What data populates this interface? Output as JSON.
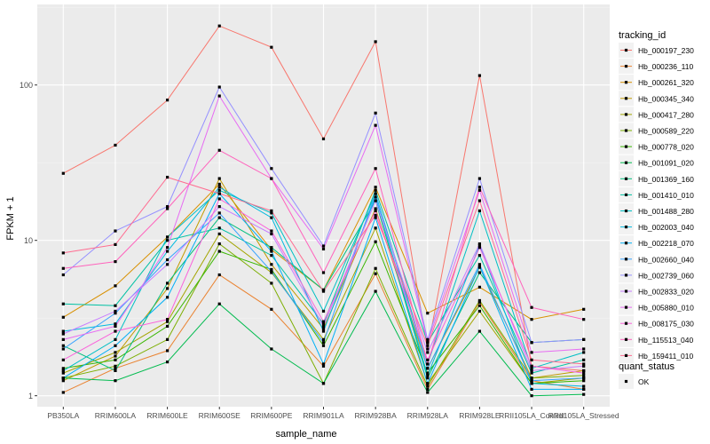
{
  "chart_data": {
    "type": "line",
    "title": "",
    "xlabel": "sample_name",
    "ylabel": "FPKM + 1",
    "y_scale": "log10",
    "ylim": [
      0.85,
      330
    ],
    "y_ticks": [
      {
        "value": 1,
        "label": "1"
      },
      {
        "value": 10,
        "label": "10"
      },
      {
        "value": 100,
        "label": "100"
      }
    ],
    "grid": true,
    "background": "#ebebeb",
    "categories": [
      "PB350LA",
      "RRIM600LA",
      "RRIM600LE",
      "RRIM600SE",
      "RRIM600PE",
      "RRIM901LA",
      "RRIM928BA",
      "RRIM928LA",
      "RRIM928LE",
      "RRII105LA_Control",
      "RRII105LA_Stressed"
    ],
    "legend": {
      "position": "right",
      "title": "tracking_id",
      "shape_title": "quant_status",
      "shape_items": [
        "OK"
      ]
    },
    "series": [
      {
        "name": "Hb_000197_230",
        "color": "#F8766D",
        "values": [
          27,
          41,
          80,
          240,
          175,
          45,
          190,
          2.0,
          115,
          1.55,
          1.45
        ]
      },
      {
        "name": "Hb_000236_110",
        "color": "#EA8331",
        "values": [
          1.05,
          1.5,
          1.95,
          6.0,
          3.6,
          1.55,
          6.1,
          1.1,
          4.0,
          1.25,
          1.1
        ]
      },
      {
        "name": "Hb_000261_320",
        "color": "#D89000",
        "values": [
          3.2,
          5.1,
          10.5,
          23,
          8.7,
          4.8,
          22,
          3.4,
          5.0,
          3.1,
          3.6
        ]
      },
      {
        "name": "Hb_000345_340",
        "color": "#C09B00",
        "values": [
          1.25,
          1.8,
          4.9,
          25,
          7.0,
          2.7,
          16,
          1.5,
          6.7,
          1.3,
          1.45
        ]
      },
      {
        "name": "Hb_000417_280",
        "color": "#A3A500",
        "values": [
          1.4,
          1.9,
          3.0,
          11,
          6.2,
          2.3,
          12,
          1.2,
          3.5,
          1.2,
          1.3
        ]
      },
      {
        "name": "Hb_000589_220",
        "color": "#7CAE00",
        "values": [
          1.3,
          1.55,
          2.3,
          9.5,
          5.3,
          1.2,
          6.6,
          1.15,
          4.1,
          1.3,
          1.35
        ]
      },
      {
        "name": "Hb_000778_020",
        "color": "#39B600",
        "values": [
          1.5,
          1.7,
          2.8,
          8.5,
          6.5,
          2.1,
          9.8,
          1.4,
          3.8,
          1.2,
          1.25
        ]
      },
      {
        "name": "Hb_001091_020",
        "color": "#00BB4E",
        "values": [
          1.3,
          1.25,
          1.65,
          3.9,
          2.0,
          1.2,
          4.7,
          1.05,
          2.6,
          1.0,
          1.02
        ]
      },
      {
        "name": "Hb_001369_160",
        "color": "#00BF7D",
        "values": [
          2.1,
          1.45,
          5.3,
          14,
          9.0,
          4.8,
          18,
          1.3,
          6.2,
          2.2,
          2.3
        ]
      },
      {
        "name": "Hb_001410_010",
        "color": "#00C1A3",
        "values": [
          3.9,
          3.8,
          10.0,
          12.0,
          8.0,
          2.9,
          21,
          2.2,
          8.0,
          1.4,
          1.7
        ]
      },
      {
        "name": "Hb_001488_280",
        "color": "#00BFC4",
        "values": [
          1.45,
          2.3,
          10.5,
          21,
          15,
          3.5,
          20,
          1.6,
          15.5,
          1.5,
          1.9
        ]
      },
      {
        "name": "Hb_002003_040",
        "color": "#00BAE0",
        "values": [
          2.6,
          2.9,
          8.5,
          22,
          14,
          2.6,
          19,
          1.35,
          9.3,
          1.2,
          1.15
        ]
      },
      {
        "name": "Hb_002218_070",
        "color": "#00B0F6",
        "values": [
          1.3,
          2.1,
          4.3,
          20,
          8.5,
          1.6,
          14,
          1.2,
          6.8,
          1.1,
          1.1
        ]
      },
      {
        "name": "Hb_002660_040",
        "color": "#35A2FF",
        "values": [
          2.0,
          3.4,
          7.5,
          15,
          6.3,
          2.2,
          20,
          1.5,
          7.0,
          1.25,
          1.3
        ]
      },
      {
        "name": "Hb_002739_060",
        "color": "#9590FF",
        "values": [
          6.0,
          11.5,
          16.5,
          97,
          29,
          9.2,
          66,
          2.3,
          25,
          2.2,
          2.3
        ]
      },
      {
        "name": "Hb_002833_020",
        "color": "#C77CFF",
        "values": [
          2.5,
          3.5,
          7.0,
          16.5,
          11.0,
          2.8,
          18,
          1.9,
          9.5,
          1.45,
          1.55
        ]
      },
      {
        "name": "Hb_005880_010",
        "color": "#E76BF3",
        "values": [
          2.3,
          2.8,
          9.0,
          85,
          25,
          8.8,
          55,
          2.2,
          21,
          1.9,
          2.0
        ]
      },
      {
        "name": "Hb_008175_030",
        "color": "#FA62DB",
        "values": [
          1.7,
          2.6,
          3.1,
          18.5,
          11.5,
          3.0,
          15.5,
          1.7,
          9.0,
          1.55,
          1.4
        ]
      },
      {
        "name": "Hb_115513_040",
        "color": "#FF62BC",
        "values": [
          6.6,
          7.3,
          16,
          38,
          25,
          6.2,
          29,
          1.6,
          22,
          3.7,
          3.1
        ]
      },
      {
        "name": "Hb_159411_010",
        "color": "#FF6C91",
        "values": [
          8.3,
          9.4,
          25.5,
          20,
          15.5,
          4.7,
          14.5,
          2.1,
          18,
          1.7,
          1.6
        ]
      }
    ]
  }
}
